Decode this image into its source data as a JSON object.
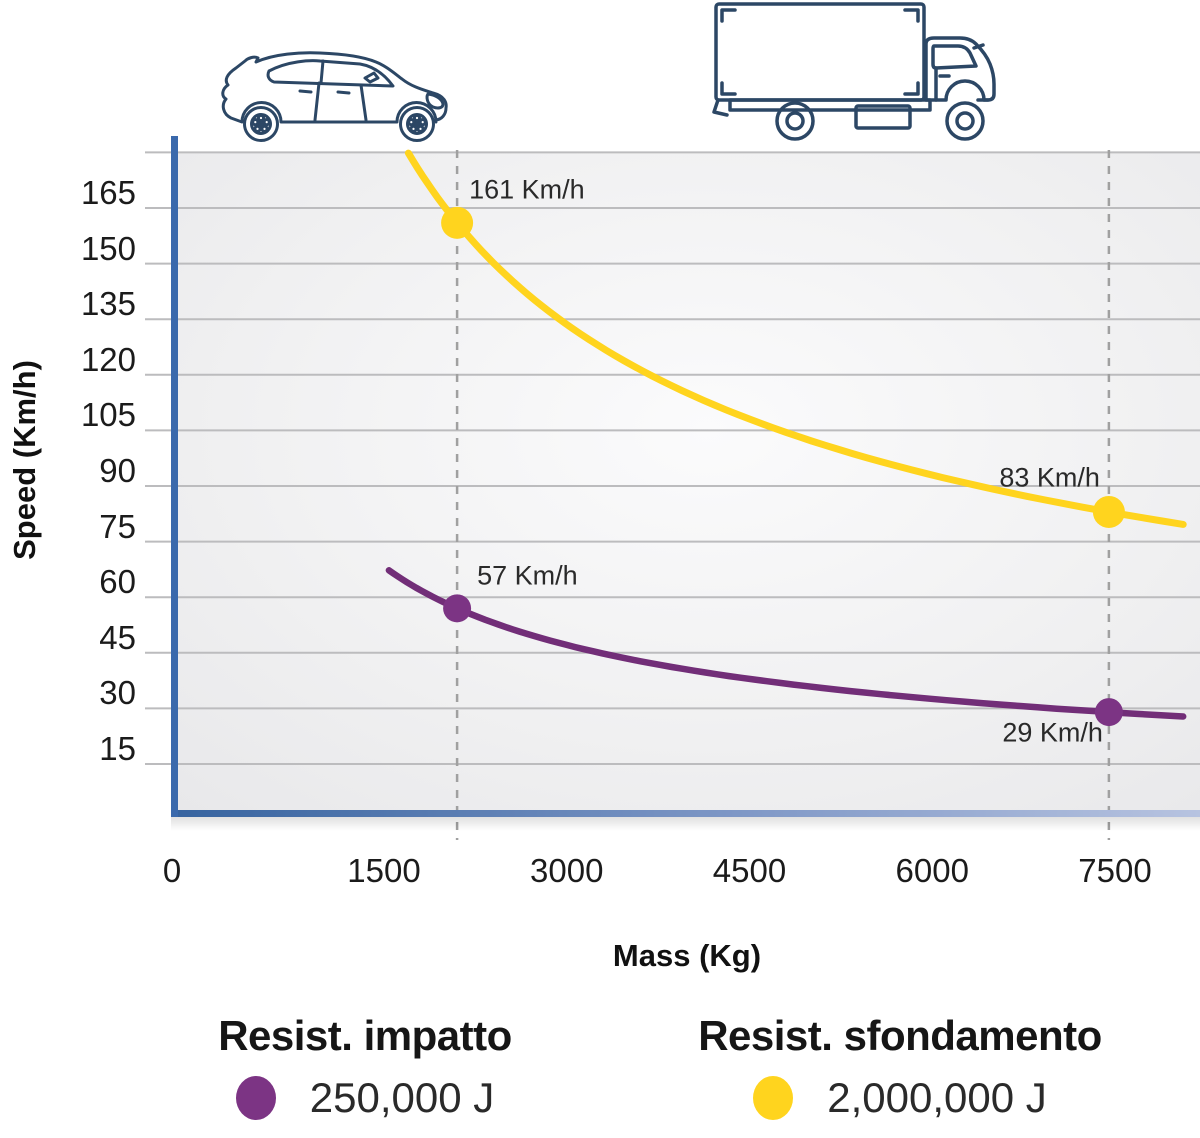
{
  "chart_data": {
    "type": "line",
    "title": "",
    "xlabel": "Mass (Kg)",
    "ylabel": "Speed (Km/h)",
    "x_ticks": [
      0,
      1500,
      3000,
      4500,
      6000,
      7500
    ],
    "y_ticks": [
      15,
      30,
      45,
      60,
      75,
      90,
      105,
      120,
      135,
      150,
      165
    ],
    "xlim": [
      0,
      8200
    ],
    "ylim": [
      0,
      180
    ],
    "grid": true,
    "legend_position": "bottom",
    "guide_masses_kg": [
      2100,
      7450
    ],
    "series": [
      {
        "name": "Resist. impatto",
        "energy": "250,000 J",
        "color": "#7c3484",
        "curve_color": "#722e78",
        "points": [
          {
            "mass_kg": 2100,
            "speed_kmh": 57,
            "label": "57 Km/h"
          },
          {
            "mass_kg": 7450,
            "speed_kmh": 29,
            "label": "29 Km/h"
          }
        ]
      },
      {
        "name": "Resist. sfondamento",
        "energy": "2,000,000 J",
        "color": "#ffd41e",
        "curve_color": "#ffd41e",
        "points": [
          {
            "mass_kg": 2100,
            "speed_kmh": 161,
            "label": "161 Km/h"
          },
          {
            "mass_kg": 7450,
            "speed_kmh": 83,
            "label": "83 Km/h"
          }
        ]
      }
    ]
  },
  "icons": {
    "above_first_guide": "car-icon",
    "above_second_guide": "truck-icon"
  },
  "colors": {
    "axis_blue": "#3a69ac",
    "axis_blue_fade": "#b7c3e0",
    "gridline": "#bcbcbe",
    "guide_dash": "#a0a0a0",
    "icon_navy": "#2c4765"
  }
}
